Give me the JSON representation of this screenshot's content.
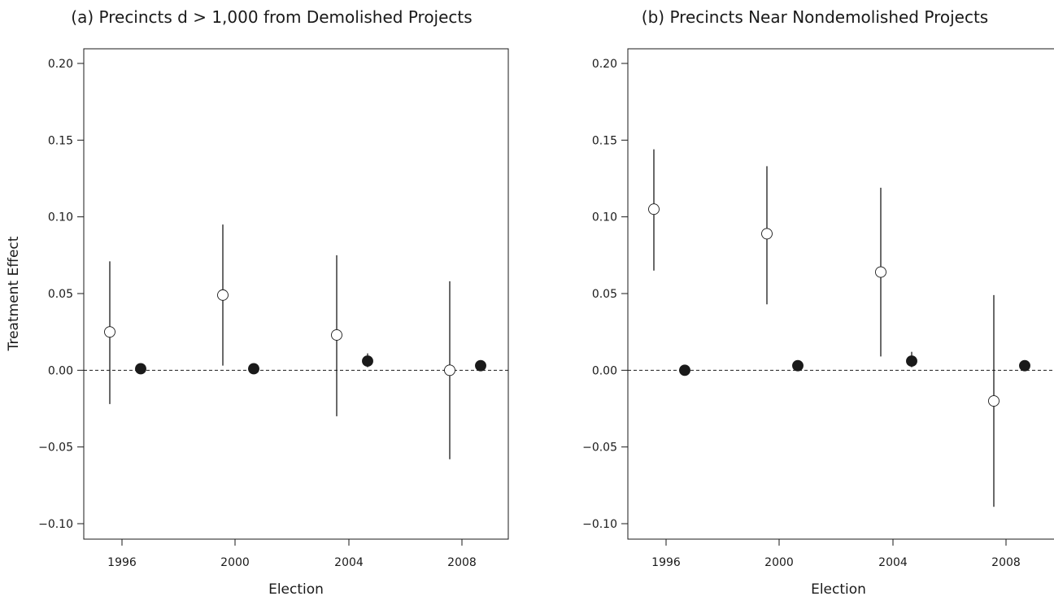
{
  "chart_data": [
    {
      "type": "scatter",
      "title": "(a) Precincts d > 1,000 from Demolished Projects",
      "xlabel": "Election",
      "ylabel": "Treatment Effect",
      "x_ticks": [
        "1996",
        "2000",
        "2004",
        "2008"
      ],
      "y_ticks": [
        "0.20",
        "0.15",
        "0.10",
        "0.05",
        "0.00",
        "−0.05",
        "−0.10"
      ],
      "ylim": [
        -0.1,
        0.2
      ],
      "reference_line": 0,
      "grid": false,
      "series": [
        {
          "marker": "open-circle",
          "points": [
            {
              "election": 1996,
              "estimate": 0.025,
              "ci": [
                -0.022,
                0.071
              ]
            },
            {
              "election": 2000,
              "estimate": 0.049,
              "ci": [
                0.003,
                0.095
              ]
            },
            {
              "election": 2004,
              "estimate": 0.023,
              "ci": [
                -0.03,
                0.075
              ]
            },
            {
              "election": 2008,
              "estimate": 0.0,
              "ci": [
                -0.058,
                0.058
              ]
            }
          ]
        },
        {
          "marker": "filled-circle",
          "points": [
            {
              "election": 1996,
              "estimate": 0.001,
              "ci": [
                0.001,
                0.001
              ]
            },
            {
              "election": 2000,
              "estimate": 0.001,
              "ci": [
                0.001,
                0.001
              ]
            },
            {
              "election": 2004,
              "estimate": 0.006,
              "ci": [
                0.002,
                0.011
              ]
            },
            {
              "election": 2008,
              "estimate": 0.003,
              "ci": [
                0.001,
                0.005
              ]
            }
          ]
        }
      ]
    },
    {
      "type": "scatter",
      "title": "(b) Precincts Near Nondemolished Projects",
      "xlabel": "Election",
      "ylabel": "",
      "x_ticks": [
        "1996",
        "2000",
        "2004",
        "2008"
      ],
      "y_ticks": [
        "0.20",
        "0.15",
        "0.10",
        "0.05",
        "0.00",
        "−0.05",
        "−0.10"
      ],
      "ylim": [
        -0.1,
        0.2
      ],
      "reference_line": 0,
      "grid": false,
      "series": [
        {
          "marker": "open-circle",
          "points": [
            {
              "election": 1996,
              "estimate": 0.105,
              "ci": [
                0.065,
                0.144
              ]
            },
            {
              "election": 2000,
              "estimate": 0.089,
              "ci": [
                0.043,
                0.133
              ]
            },
            {
              "election": 2004,
              "estimate": 0.064,
              "ci": [
                0.009,
                0.119
              ]
            },
            {
              "election": 2008,
              "estimate": -0.02,
              "ci": [
                -0.089,
                0.049
              ]
            }
          ]
        },
        {
          "marker": "filled-circle",
          "points": [
            {
              "election": 1996,
              "estimate": 0.0,
              "ci": [
                0.0,
                0.0
              ]
            },
            {
              "election": 2000,
              "estimate": 0.003,
              "ci": [
                0.001,
                0.005
              ]
            },
            {
              "election": 2004,
              "estimate": 0.006,
              "ci": [
                0.002,
                0.012
              ]
            },
            {
              "election": 2008,
              "estimate": 0.003,
              "ci": [
                0.0,
                0.006
              ]
            }
          ]
        }
      ]
    }
  ]
}
